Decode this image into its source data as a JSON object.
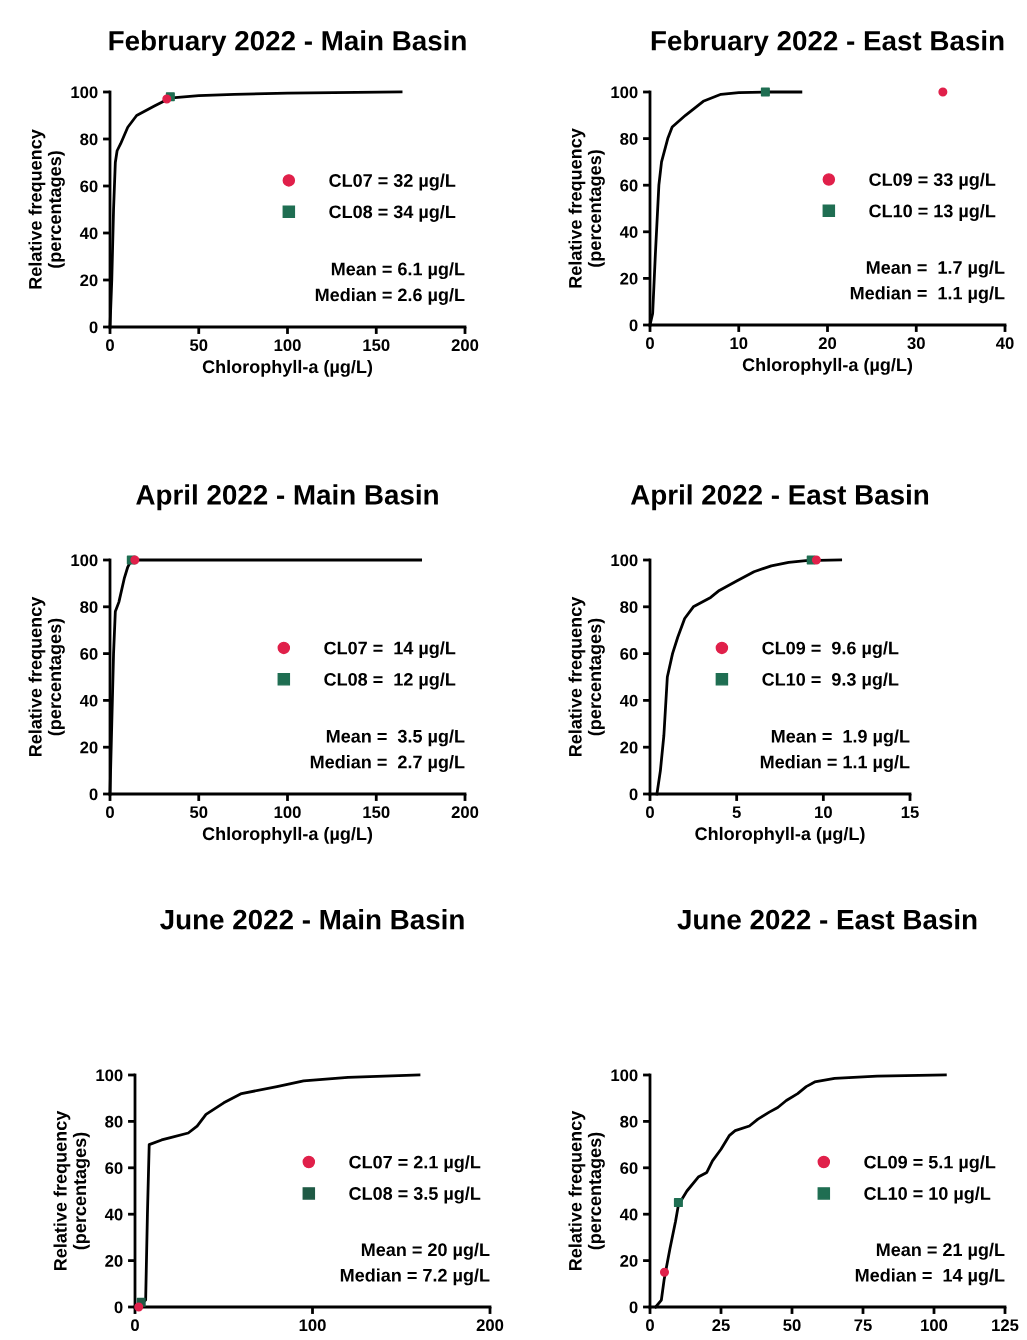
{
  "chart_data": [
    {
      "type": "line",
      "title": "February 2022 - Main Basin",
      "xlabel": "Chlorophyll-a (µg/L)",
      "ylabel": "Relative frequency\n(percentages)",
      "xlim": [
        0,
        200
      ],
      "xticks": [
        0,
        50,
        100,
        150,
        200
      ],
      "ylim": [
        0,
        100
      ],
      "yticks": [
        0,
        20,
        40,
        60,
        80,
        100
      ],
      "legend": "right",
      "annotations": [
        "Mean = 6.1 µg/L",
        "Median = 2.6 µg/L"
      ],
      "series": [
        {
          "color": "#000000",
          "x": [
            0,
            1,
            2,
            3,
            4,
            6,
            10,
            15,
            20,
            25,
            30,
            35,
            50,
            70,
            100,
            164
          ],
          "values": [
            0,
            20,
            50,
            70,
            75,
            78,
            85,
            90,
            92,
            94,
            96,
            97.5,
            98.5,
            99,
            99.5,
            100
          ]
        },
        {
          "type": "scatter",
          "name": "CL07 = 32 µg/L",
          "color": "#e0204a",
          "marker": "circle",
          "x": [
            32
          ],
          "values": [
            97
          ]
        },
        {
          "type": "scatter",
          "name": "CL08 = 34 µg/L",
          "color": "#1f6e52",
          "marker": "square",
          "x": [
            34
          ],
          "values": [
            98
          ]
        }
      ]
    },
    {
      "type": "line",
      "title": "February 2022 - East Basin",
      "xlabel": "Chlorophyll-a (µg/L)",
      "ylabel": "Relative frequency\n(percentages)",
      "xlim": [
        0,
        40
      ],
      "xticks": [
        0,
        10,
        20,
        30,
        40
      ],
      "ylim": [
        0,
        100
      ],
      "yticks": [
        0,
        20,
        40,
        60,
        80,
        100
      ],
      "legend": "right",
      "annotations": [
        "Mean =  1.7 µg/L",
        "Median =  1.1 µg/L"
      ],
      "series": [
        {
          "color": "#000000",
          "x": [
            0,
            0.3,
            0.6,
            1,
            1.3,
            2,
            2.5,
            4,
            5,
            6,
            8,
            10,
            13,
            17
          ],
          "values": [
            0,
            5,
            30,
            60,
            70,
            80,
            85,
            90,
            93,
            96,
            99,
            99.7,
            100,
            100
          ]
        },
        {
          "type": "scatter",
          "name": "CL09 = 33 µg/L",
          "color": "#e0204a",
          "marker": "circle",
          "x": [
            33
          ],
          "values": [
            100
          ]
        },
        {
          "type": "scatter",
          "name": "CL10 = 13 µg/L",
          "color": "#1f6e52",
          "marker": "square",
          "x": [
            13
          ],
          "values": [
            100
          ]
        }
      ]
    },
    {
      "type": "line",
      "title": "April 2022 - Main Basin",
      "xlabel": "Chlorophyll-a (µg/L)",
      "ylabel": "Relative frequency\n(percentages)",
      "xlim": [
        0,
        200
      ],
      "xticks": [
        0,
        50,
        100,
        150,
        200
      ],
      "ylim": [
        0,
        100
      ],
      "yticks": [
        0,
        20,
        40,
        60,
        80,
        100
      ],
      "legend": "right",
      "annotations": [
        "Mean =  3.5 µg/L",
        "Median =  2.7 µg/L"
      ],
      "series": [
        {
          "color": "#000000",
          "x": [
            0,
            1,
            2,
            3,
            5,
            8,
            10,
            12,
            175
          ],
          "values": [
            0,
            30,
            60,
            78,
            82,
            92,
            97,
            100,
            100
          ]
        },
        {
          "type": "scatter",
          "name": "CL07 =  14 µg/L",
          "color": "#e0204a",
          "marker": "circle",
          "x": [
            14
          ],
          "values": [
            100
          ]
        },
        {
          "type": "scatter",
          "name": "CL08 =  12 µg/L",
          "color": "#1f6e52",
          "marker": "square",
          "x": [
            12
          ],
          "values": [
            100
          ]
        }
      ]
    },
    {
      "type": "line",
      "title": "April 2022 - East Basin",
      "xlabel": "Chlorophyll-a (µg/L)",
      "ylabel": "Relative frequency\n(percentages)",
      "xlim": [
        0,
        15
      ],
      "xticks": [
        0,
        5,
        10,
        15
      ],
      "ylim": [
        0,
        100
      ],
      "yticks": [
        0,
        20,
        40,
        60,
        80,
        100
      ],
      "legend": "right",
      "annotations": [
        "Mean =  1.9 µg/L",
        "Median = 1.1 µg/L"
      ],
      "series": [
        {
          "color": "#000000",
          "x": [
            0.4,
            0.6,
            0.8,
            1.0,
            1.3,
            1.6,
            2,
            2.5,
            3.5,
            4,
            5,
            6,
            7,
            8,
            9,
            11
          ],
          "values": [
            0,
            10,
            25,
            50,
            60,
            67,
            75,
            80,
            84,
            87,
            91,
            95,
            97.5,
            99,
            99.7,
            100
          ]
        },
        {
          "type": "scatter",
          "name": "CL09 =  9.6 µg/L",
          "color": "#e0204a",
          "marker": "circle",
          "x": [
            9.6
          ],
          "values": [
            100
          ]
        },
        {
          "type": "scatter",
          "name": "CL10 =  9.3 µg/L",
          "color": "#1f6e52",
          "marker": "square",
          "x": [
            9.3
          ],
          "values": [
            100
          ]
        }
      ]
    },
    {
      "type": "line",
      "title": "June 2022 - Main Basin",
      "ylabel": "Relative frequency\n(percentages)",
      "xlim": [
        0,
        200
      ],
      "xticks": [
        0,
        100,
        200
      ],
      "ylim": [
        0,
        100
      ],
      "yticks": [
        0,
        20,
        40,
        60,
        80,
        100
      ],
      "legend": "right",
      "annotations": [
        "Mean = 20 µg/L",
        "Median = 7.2 µg/L"
      ],
      "series": [
        {
          "color": "#000000",
          "x": [
            0,
            3,
            6,
            7,
            8,
            15,
            20,
            30,
            35,
            40,
            50,
            60,
            80,
            95,
            120,
            160
          ],
          "values": [
            0,
            1,
            3,
            40,
            70,
            72,
            73,
            75,
            78,
            83,
            88,
            92,
            95,
            97.5,
            99,
            100
          ]
        },
        {
          "type": "scatter",
          "name": "CL07 = 2.1 µg/L",
          "color": "#e0204a",
          "marker": "circle",
          "x": [
            2.1
          ],
          "values": [
            0
          ]
        },
        {
          "type": "scatter",
          "name": "CL08 = 3.5 µg/L",
          "color": "#1f5a45",
          "marker": "square",
          "x": [
            3.5
          ],
          "values": [
            2
          ]
        }
      ]
    },
    {
      "type": "line",
      "title": "June 2022 - East Basin",
      "ylabel": "Relative frequency\n(percentages)",
      "xlim": [
        0,
        125
      ],
      "xticks": [
        0,
        25,
        50,
        75,
        100,
        125
      ],
      "ylim": [
        0,
        100
      ],
      "yticks": [
        0,
        20,
        40,
        60,
        80,
        100
      ],
      "legend": "right",
      "annotations": [
        "Mean = 21 µg/L",
        "Median =  14 µg/L"
      ],
      "series": [
        {
          "color": "#000000",
          "x": [
            2,
            4,
            5,
            7,
            9,
            10,
            13,
            17,
            20,
            22,
            25,
            28,
            30,
            35,
            38,
            42,
            45,
            48,
            52,
            55,
            58,
            65,
            80,
            104
          ],
          "values": [
            0,
            3,
            12,
            25,
            37,
            44,
            50,
            56,
            58,
            63,
            68,
            74,
            76,
            78,
            81,
            84,
            86,
            89,
            92,
            95,
            97,
            98.5,
            99.5,
            100
          ]
        },
        {
          "type": "scatter",
          "name": "CL09 = 5.1 µg/L",
          "color": "#e0204a",
          "marker": "circle",
          "x": [
            5.1
          ],
          "values": [
            15
          ]
        },
        {
          "type": "scatter",
          "name": "CL10 = 10 µg/L",
          "color": "#1f6e52",
          "marker": "square",
          "x": [
            10
          ],
          "values": [
            45
          ]
        }
      ]
    }
  ]
}
